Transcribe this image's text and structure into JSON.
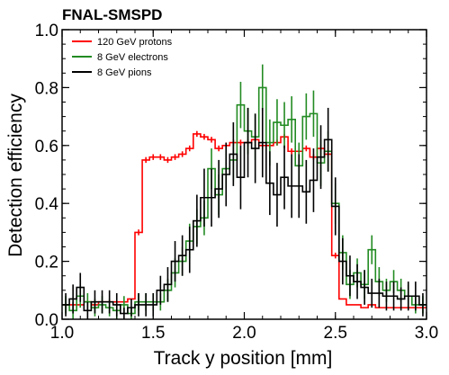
{
  "chart_data": {
    "type": "line",
    "title": "FNAL-SMSPD",
    "xlabel": "Track y position [mm]",
    "ylabel": "Detection efficiency",
    "xlim": [
      1.0,
      3.0
    ],
    "ylim": [
      0.0,
      1.0
    ],
    "xticks": [
      "1.0",
      "1.5",
      "2.0",
      "2.5",
      "3.0"
    ],
    "yticks": [
      "0.0",
      "0.2",
      "0.4",
      "0.6",
      "0.8",
      "1.0"
    ],
    "legend_position": "top-left",
    "grid": false,
    "bin_width": 0.04,
    "series": [
      {
        "name": "120 GeV protons",
        "color": "#ff0000",
        "x": [
          1.0,
          1.04,
          1.08,
          1.12,
          1.16,
          1.2,
          1.24,
          1.28,
          1.32,
          1.36,
          1.4,
          1.44,
          1.48,
          1.52,
          1.56,
          1.6,
          1.64,
          1.68,
          1.72,
          1.76,
          1.8,
          1.84,
          1.88,
          1.92,
          1.96,
          2.0,
          2.04,
          2.08,
          2.12,
          2.16,
          2.2,
          2.24,
          2.28,
          2.32,
          2.36,
          2.4,
          2.44,
          2.48,
          2.52,
          2.56,
          2.6,
          2.64,
          2.68,
          2.72,
          2.76,
          2.8,
          2.84,
          2.88,
          2.92,
          2.96
        ],
        "y": [
          0.05,
          0.05,
          0.05,
          0.06,
          0.05,
          0.06,
          0.06,
          0.06,
          0.06,
          0.07,
          0.3,
          0.55,
          0.56,
          0.56,
          0.55,
          0.56,
          0.57,
          0.59,
          0.64,
          0.63,
          0.62,
          0.59,
          0.6,
          0.61,
          0.61,
          0.61,
          0.62,
          0.6,
          0.6,
          0.61,
          0.63,
          0.58,
          0.58,
          0.59,
          0.56,
          0.59,
          0.57,
          0.22,
          0.07,
          0.05,
          0.05,
          0.04,
          0.05,
          0.04,
          0.04,
          0.04,
          0.04,
          0.04,
          0.04,
          0.04
        ],
        "yerr": [
          0,
          0,
          0,
          0,
          0,
          0,
          0,
          0,
          0,
          0,
          0.01,
          0.01,
          0.01,
          0.01,
          0.01,
          0.01,
          0.01,
          0.01,
          0.01,
          0.01,
          0.01,
          0.01,
          0.01,
          0.01,
          0.01,
          0.01,
          0.01,
          0.01,
          0.01,
          0.01,
          0.01,
          0.01,
          0.01,
          0.01,
          0.01,
          0.01,
          0.01,
          0.01,
          0,
          0,
          0,
          0,
          0,
          0,
          0,
          0,
          0,
          0,
          0,
          0
        ]
      },
      {
        "name": "8 GeV electrons",
        "color": "#228b22",
        "x": [
          1.0,
          1.04,
          1.08,
          1.12,
          1.16,
          1.2,
          1.24,
          1.28,
          1.32,
          1.36,
          1.4,
          1.44,
          1.48,
          1.52,
          1.56,
          1.6,
          1.64,
          1.68,
          1.72,
          1.76,
          1.8,
          1.84,
          1.88,
          1.92,
          1.96,
          2.0,
          2.04,
          2.08,
          2.12,
          2.16,
          2.2,
          2.24,
          2.28,
          2.32,
          2.36,
          2.4,
          2.44,
          2.48,
          2.52,
          2.56,
          2.6,
          2.64,
          2.68,
          2.72,
          2.76,
          2.8,
          2.84,
          2.88,
          2.92,
          2.96
        ],
        "y": [
          0.05,
          0.03,
          0.08,
          0.06,
          0.04,
          0.05,
          0.04,
          0.03,
          0.05,
          0.02,
          0.06,
          0.06,
          0.06,
          0.06,
          0.1,
          0.16,
          0.2,
          0.27,
          0.32,
          0.35,
          0.52,
          0.43,
          0.52,
          0.55,
          0.74,
          0.65,
          0.63,
          0.8,
          0.61,
          0.68,
          0.67,
          0.69,
          0.53,
          0.7,
          0.71,
          0.54,
          0.58,
          0.4,
          0.23,
          0.12,
          0.16,
          0.12,
          0.24,
          0.13,
          0.1,
          0.13,
          0.1,
          0.08,
          0.05,
          0.05
        ],
        "yerr": [
          0.03,
          0.03,
          0.04,
          0.03,
          0.03,
          0.03,
          0.03,
          0.03,
          0.03,
          0.02,
          0.03,
          0.03,
          0.03,
          0.03,
          0.04,
          0.05,
          0.05,
          0.06,
          0.06,
          0.06,
          0.07,
          0.07,
          0.07,
          0.07,
          0.08,
          0.08,
          0.08,
          0.08,
          0.08,
          0.08,
          0.08,
          0.08,
          0.08,
          0.08,
          0.08,
          0.08,
          0.07,
          0.07,
          0.06,
          0.05,
          0.05,
          0.05,
          0.05,
          0.05,
          0.04,
          0.04,
          0.04,
          0.04,
          0.03,
          0.03
        ]
      },
      {
        "name": "8 GeV pions",
        "color": "#000000",
        "x": [
          1.0,
          1.04,
          1.08,
          1.12,
          1.16,
          1.2,
          1.24,
          1.28,
          1.32,
          1.36,
          1.4,
          1.44,
          1.48,
          1.52,
          1.56,
          1.6,
          1.64,
          1.68,
          1.72,
          1.76,
          1.8,
          1.84,
          1.88,
          1.92,
          1.96,
          2.0,
          2.04,
          2.08,
          2.12,
          2.16,
          2.2,
          2.24,
          2.28,
          2.32,
          2.36,
          2.4,
          2.44,
          2.48,
          2.52,
          2.56,
          2.6,
          2.64,
          2.68,
          2.72,
          2.76,
          2.8,
          2.84,
          2.88,
          2.92,
          2.96
        ],
        "y": [
          0.05,
          0.07,
          0.11,
          0.03,
          0.06,
          0.06,
          0.06,
          0.05,
          0.02,
          0.04,
          0.05,
          0.05,
          0.05,
          0.1,
          0.12,
          0.2,
          0.22,
          0.24,
          0.34,
          0.42,
          0.42,
          0.45,
          0.5,
          0.57,
          0.49,
          0.61,
          0.59,
          0.61,
          0.47,
          0.43,
          0.49,
          0.46,
          0.46,
          0.44,
          0.48,
          0.56,
          0.62,
          0.39,
          0.2,
          0.15,
          0.13,
          0.11,
          0.09,
          0.09,
          0.08,
          0.08,
          0.07,
          0.08,
          0.08,
          0.05
        ],
        "yerr": [
          0.04,
          0.05,
          0.05,
          0.03,
          0.04,
          0.04,
          0.04,
          0.04,
          0.02,
          0.03,
          0.04,
          0.04,
          0.04,
          0.05,
          0.06,
          0.07,
          0.07,
          0.08,
          0.09,
          0.1,
          0.1,
          0.1,
          0.11,
          0.11,
          0.11,
          0.12,
          0.12,
          0.12,
          0.11,
          0.11,
          0.11,
          0.11,
          0.11,
          0.11,
          0.11,
          0.11,
          0.11,
          0.1,
          0.08,
          0.07,
          0.06,
          0.06,
          0.05,
          0.05,
          0.05,
          0.05,
          0.04,
          0.05,
          0.05,
          0.04
        ]
      }
    ]
  }
}
